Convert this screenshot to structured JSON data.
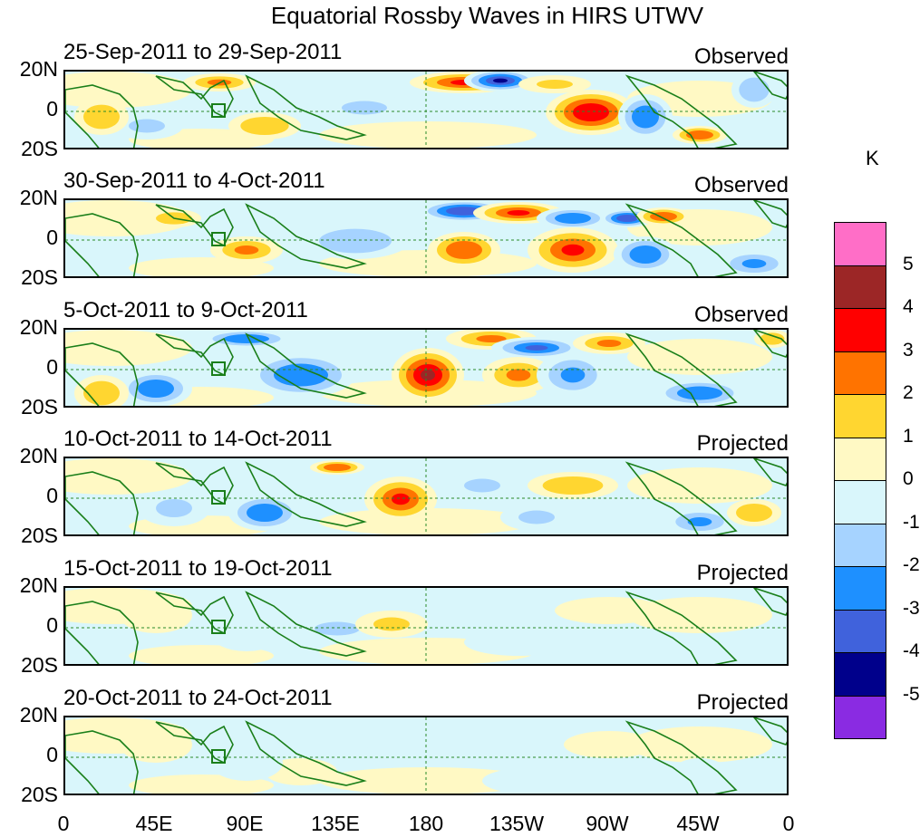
{
  "title": "Equatorial Rossby Waves in HIRS UTWV",
  "panels": [
    {
      "date_range": "25-Sep-2011 to 29-Sep-2011",
      "kind": "Observed",
      "intensity": 1.0
    },
    {
      "date_range": "30-Sep-2011 to 4-Oct-2011",
      "kind": "Observed",
      "intensity": 1.0
    },
    {
      "date_range": "5-Oct-2011 to 9-Oct-2011",
      "kind": "Observed",
      "intensity": 0.95
    },
    {
      "date_range": "10-Oct-2011 to 14-Oct-2011",
      "kind": "Projected",
      "intensity": 0.75
    },
    {
      "date_range": "15-Oct-2011 to 19-Oct-2011",
      "kind": "Projected",
      "intensity": 0.35
    },
    {
      "date_range": "20-Oct-2011 to 24-Oct-2011",
      "kind": "Projected",
      "intensity": 0.3
    }
  ],
  "lat_labels": [
    "20N",
    "0",
    "20S"
  ],
  "lon_labels": [
    "0",
    "45E",
    "90E",
    "135E",
    "180",
    "135W",
    "90W",
    "45W",
    "0"
  ],
  "colorbar": {
    "unit": "K",
    "labels": [
      "5",
      "4",
      "3",
      "2",
      "1",
      "0",
      "-1",
      "-2",
      "-3",
      "-4",
      "-5"
    ],
    "colors": [
      "#ff6ec7",
      "#9c2626",
      "#ff0000",
      "#ff7300",
      "#ffd630",
      "#fff9c4",
      "#d9f6fb",
      "#a6d3ff",
      "#1e90ff",
      "#4062dc",
      "#00008b",
      "#8a2be2"
    ]
  },
  "map_colors": {
    "land": "#1a7f1a",
    "equator_line": "#2a8a2a"
  }
}
